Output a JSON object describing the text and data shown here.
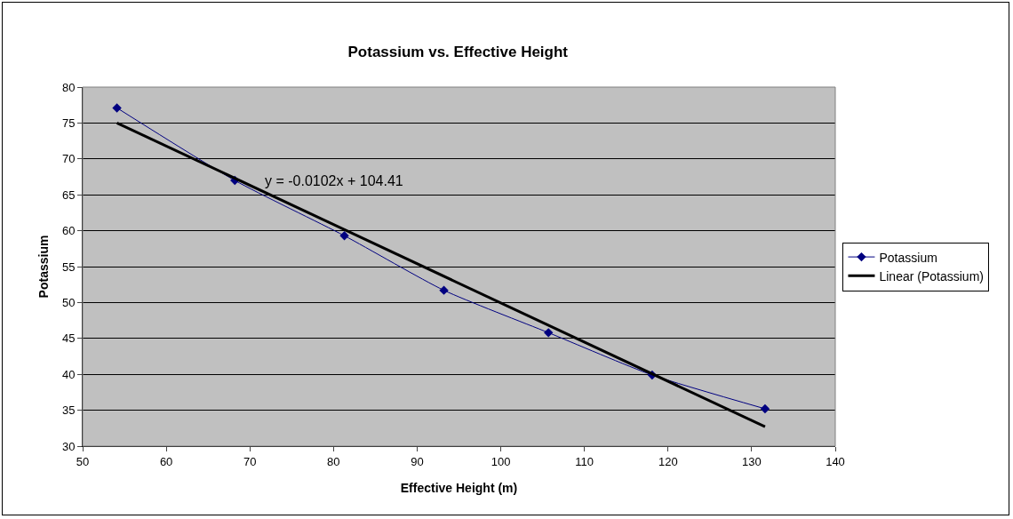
{
  "chart_data": {
    "type": "line",
    "title": "Potassium vs. Effective Height",
    "xlabel": "Effective Height (m)",
    "ylabel": "Potassium",
    "x": [
      54.1,
      68.2,
      81.3,
      93.2,
      105.7,
      118.1,
      131.6
    ],
    "series": [
      {
        "name": "Potassium",
        "color": "#000080",
        "values": [
          77.1,
          67,
          59.3,
          51.7,
          45.8,
          39.9,
          35.2
        ],
        "marker": "diamond"
      },
      {
        "name": "Linear (Potassium)",
        "type": "line",
        "color": "#000000",
        "x": [
          54.1,
          131.6
        ],
        "values": [
          75,
          32.7
        ],
        "marker": "none"
      }
    ],
    "annotations": [
      "y = -0.0102x + 104.41"
    ],
    "xlim": [
      50,
      140
    ],
    "xticks": [
      50,
      60,
      70,
      80,
      90,
      100,
      110,
      120,
      130,
      140
    ],
    "ylim": [
      30,
      80
    ],
    "yticks": [
      30,
      35,
      40,
      45,
      50,
      55,
      60,
      65,
      70,
      75,
      80
    ],
    "grid": "y",
    "legend": "right",
    "line_style": "solid"
  }
}
